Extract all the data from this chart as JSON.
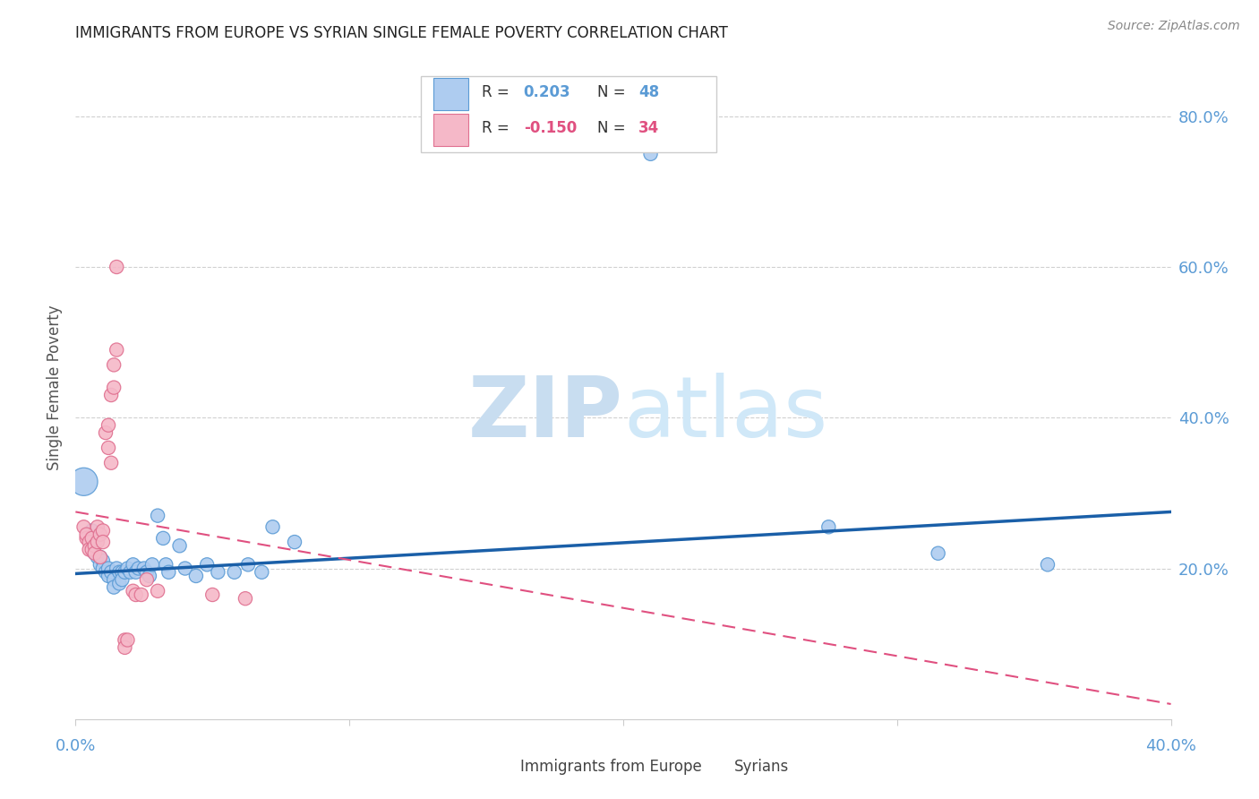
{
  "title": "IMMIGRANTS FROM EUROPE VS SYRIAN SINGLE FEMALE POVERTY CORRELATION CHART",
  "source": "Source: ZipAtlas.com",
  "ylabel": "Single Female Poverty",
  "x_range": [
    0.0,
    0.4
  ],
  "y_range": [
    0.0,
    0.88
  ],
  "legend_r_blue": "R =  0.203",
  "legend_n_blue": "N = 48",
  "legend_r_pink": "R = -0.150",
  "legend_n_pink": "N = 34",
  "watermark_zip": "ZIP",
  "watermark_atlas": "atlas",
  "blue_scatter": [
    [
      0.003,
      0.315
    ],
    [
      0.006,
      0.25
    ],
    [
      0.007,
      0.23
    ],
    [
      0.007,
      0.22
    ],
    [
      0.008,
      0.215
    ],
    [
      0.009,
      0.215
    ],
    [
      0.009,
      0.205
    ],
    [
      0.01,
      0.21
    ],
    [
      0.01,
      0.2
    ],
    [
      0.011,
      0.195
    ],
    [
      0.012,
      0.2
    ],
    [
      0.012,
      0.19
    ],
    [
      0.013,
      0.195
    ],
    [
      0.014,
      0.185
    ],
    [
      0.014,
      0.175
    ],
    [
      0.015,
      0.2
    ],
    [
      0.016,
      0.195
    ],
    [
      0.016,
      0.18
    ],
    [
      0.017,
      0.195
    ],
    [
      0.017,
      0.185
    ],
    [
      0.018,
      0.195
    ],
    [
      0.019,
      0.2
    ],
    [
      0.02,
      0.195
    ],
    [
      0.021,
      0.205
    ],
    [
      0.022,
      0.195
    ],
    [
      0.023,
      0.2
    ],
    [
      0.025,
      0.2
    ],
    [
      0.026,
      0.195
    ],
    [
      0.027,
      0.19
    ],
    [
      0.028,
      0.205
    ],
    [
      0.03,
      0.27
    ],
    [
      0.032,
      0.24
    ],
    [
      0.033,
      0.205
    ],
    [
      0.034,
      0.195
    ],
    [
      0.038,
      0.23
    ],
    [
      0.04,
      0.2
    ],
    [
      0.044,
      0.19
    ],
    [
      0.048,
      0.205
    ],
    [
      0.052,
      0.195
    ],
    [
      0.058,
      0.195
    ],
    [
      0.063,
      0.205
    ],
    [
      0.068,
      0.195
    ],
    [
      0.072,
      0.255
    ],
    [
      0.08,
      0.235
    ],
    [
      0.21,
      0.75
    ],
    [
      0.275,
      0.255
    ],
    [
      0.315,
      0.22
    ],
    [
      0.355,
      0.205
    ]
  ],
  "blue_sizes": [
    500,
    120,
    120,
    120,
    120,
    120,
    120,
    120,
    120,
    120,
    120,
    120,
    120,
    120,
    120,
    120,
    120,
    120,
    120,
    120,
    120,
    120,
    120,
    120,
    120,
    120,
    120,
    120,
    120,
    120,
    120,
    120,
    120,
    120,
    120,
    120,
    120,
    120,
    120,
    120,
    120,
    120,
    120,
    120,
    120,
    120,
    120,
    120
  ],
  "pink_scatter": [
    [
      0.003,
      0.255
    ],
    [
      0.004,
      0.24
    ],
    [
      0.004,
      0.245
    ],
    [
      0.005,
      0.235
    ],
    [
      0.005,
      0.225
    ],
    [
      0.006,
      0.24
    ],
    [
      0.006,
      0.225
    ],
    [
      0.007,
      0.23
    ],
    [
      0.007,
      0.22
    ],
    [
      0.008,
      0.235
    ],
    [
      0.008,
      0.255
    ],
    [
      0.009,
      0.215
    ],
    [
      0.009,
      0.245
    ],
    [
      0.01,
      0.25
    ],
    [
      0.01,
      0.235
    ],
    [
      0.011,
      0.38
    ],
    [
      0.012,
      0.39
    ],
    [
      0.012,
      0.36
    ],
    [
      0.013,
      0.34
    ],
    [
      0.013,
      0.43
    ],
    [
      0.014,
      0.44
    ],
    [
      0.014,
      0.47
    ],
    [
      0.015,
      0.49
    ],
    [
      0.015,
      0.6
    ],
    [
      0.018,
      0.105
    ],
    [
      0.018,
      0.095
    ],
    [
      0.019,
      0.105
    ],
    [
      0.021,
      0.17
    ],
    [
      0.022,
      0.165
    ],
    [
      0.024,
      0.165
    ],
    [
      0.026,
      0.185
    ],
    [
      0.03,
      0.17
    ],
    [
      0.05,
      0.165
    ],
    [
      0.062,
      0.16
    ]
  ],
  "pink_sizes": [
    120,
    120,
    120,
    120,
    120,
    120,
    120,
    120,
    120,
    120,
    120,
    120,
    120,
    120,
    120,
    120,
    120,
    120,
    120,
    120,
    120,
    120,
    120,
    120,
    120,
    120,
    120,
    120,
    120,
    120,
    120,
    120,
    120,
    120
  ],
  "blue_color": "#aeccf0",
  "blue_edge_color": "#5b9bd5",
  "pink_color": "#f5b8c8",
  "pink_edge_color": "#e07090",
  "trend_blue_color": "#1a5fa8",
  "trend_pink_color": "#e05080",
  "background_color": "#ffffff",
  "grid_color": "#d0d0d0",
  "title_color": "#222222",
  "axis_color": "#5b9bd5"
}
